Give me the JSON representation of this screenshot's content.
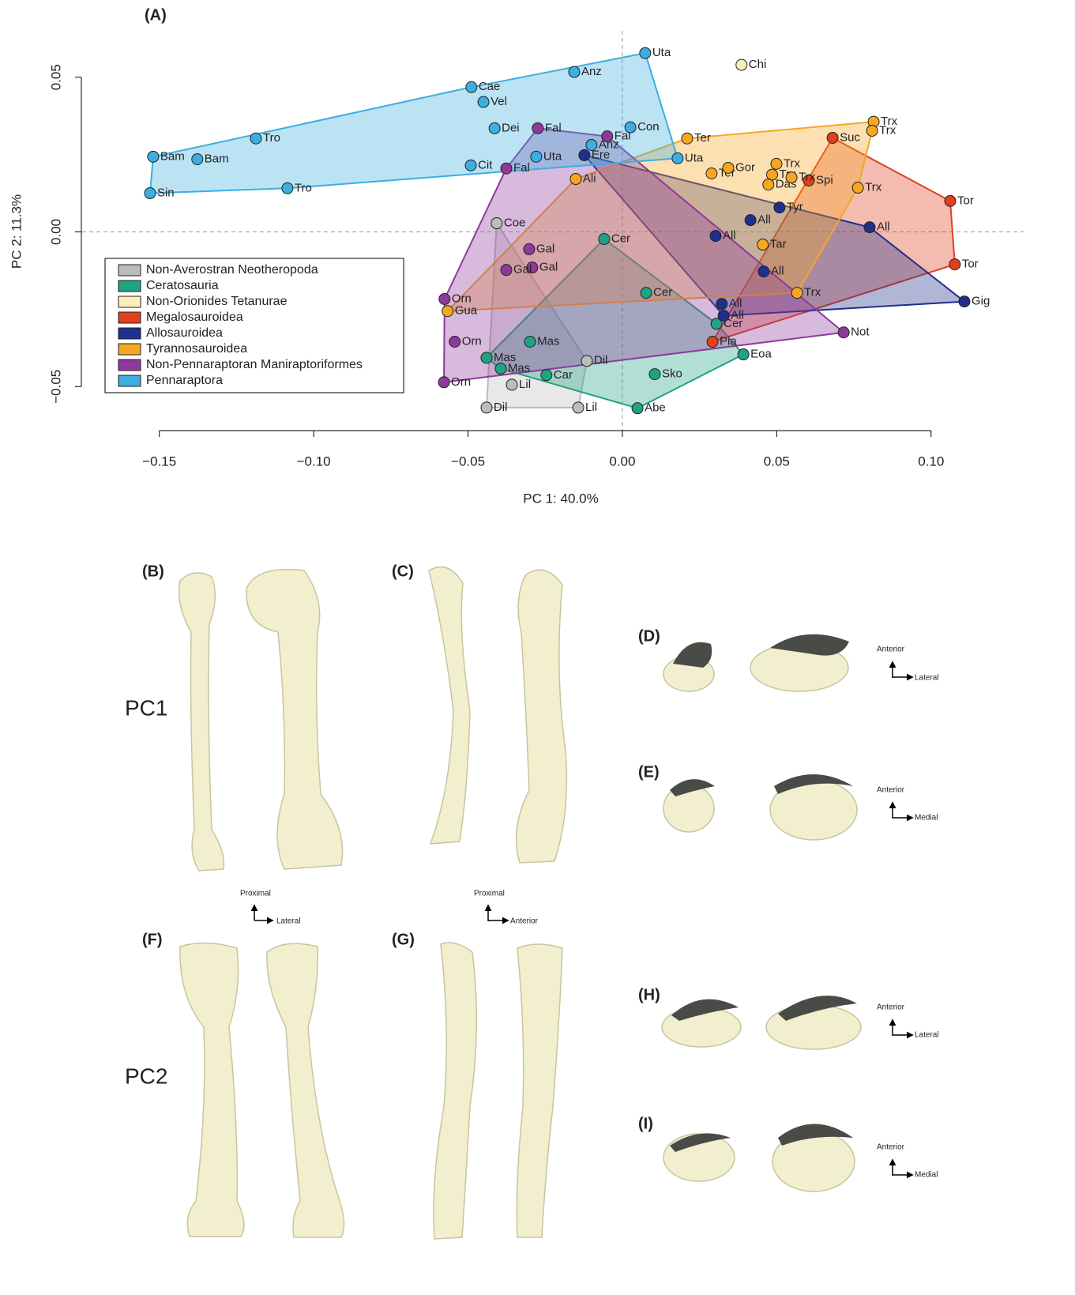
{
  "chart_data": {
    "type": "scatter",
    "title": "(A)",
    "x_label": "PC 1: 40.0%",
    "y_label": "PC 2: 11.3%",
    "xlim": [
      -0.175,
      0.13
    ],
    "ylim": [
      -0.065,
      0.065
    ],
    "xticks": [
      {
        "value": -0.15,
        "label": "−0.15"
      },
      {
        "value": -0.1,
        "label": "−0.10"
      },
      {
        "value": -0.05,
        "label": "−0.05"
      },
      {
        "value": 0,
        "label": "0.00"
      },
      0.05,
      {
        "value": 0.1,
        "label": "0.10"
      }
    ],
    "yticks": [
      {
        "value": -0.05,
        "label": "−0.05"
      },
      {
        "value": 0,
        "label": "0.00"
      },
      0.05
    ],
    "zero_lines": true,
    "hulls": true,
    "legend": "lower left",
    "series": [
      {
        "name": "Non-Averostran Neotheropoda",
        "color": "#bcbcbc",
        "labels": [
          "Coe",
          "Dil",
          "Lil",
          "Dil",
          "Lil"
        ],
        "x": [
          -0.0407,
          -0.0115,
          -0.0358,
          -0.044,
          -0.0143
        ],
        "y": [
          0.0028,
          -0.0417,
          -0.0494,
          -0.0568,
          -0.0568
        ]
      },
      {
        "name": "Ceratosauria",
        "color": "#1fa383",
        "labels": [
          "Cer",
          "Cer",
          "Mas",
          "Mas",
          "Mas",
          "Car",
          "Cer",
          "Eoa",
          "Sko",
          "Abe"
        ],
        "x": [
          -0.0059,
          0.0077,
          -0.0299,
          -0.044,
          -0.0394,
          -0.0246,
          0.0305,
          0.0392,
          0.0105,
          0.0049
        ],
        "y": [
          -0.0023,
          -0.0197,
          -0.0355,
          -0.0407,
          -0.0442,
          -0.0463,
          -0.0297,
          -0.0396,
          -0.046,
          -0.057
        ]
      },
      {
        "name": "Non-Orionides Tetanurae",
        "color": "#fbefb8",
        "labels": [
          "Chi"
        ],
        "x": [
          0.0386
        ],
        "y": [
          0.054
        ]
      },
      {
        "name": "Megalosauroidea",
        "color": "#e0401c",
        "labels": [
          "Suc",
          "Spi",
          "Tor",
          "Tor",
          "Pia"
        ],
        "x": [
          0.0681,
          0.0604,
          0.1062,
          0.1077,
          0.0292
        ],
        "y": [
          0.0304,
          0.0166,
          0.01,
          -0.0105,
          -0.0355
        ]
      },
      {
        "name": "Allosauroidea",
        "color": "#1f2f8c",
        "labels": [
          "Ere",
          "Tyr",
          "All",
          "All",
          "All",
          "All",
          "All",
          "All",
          "Gig"
        ],
        "x": [
          -0.0123,
          0.0509,
          0.0415,
          0.0302,
          0.0801,
          0.0458,
          0.0322,
          0.0328,
          0.1108
        ],
        "y": [
          0.0248,
          0.0079,
          0.0038,
          -0.0013,
          0.0015,
          -0.0128,
          -0.0233,
          -0.0271,
          -0.0225
        ]
      },
      {
        "name": "Tyrannosauroidea",
        "color": "#f5a623",
        "labels": [
          "Ali",
          "Ter",
          "Ter",
          "Gor",
          "Trx",
          "Trx",
          "Das",
          "Trx",
          "Trx",
          "Trx",
          "Trx",
          "Tar",
          "Trx",
          "Gua"
        ],
        "x": [
          -0.0151,
          0.021,
          0.0289,
          0.0343,
          0.0499,
          0.0485,
          0.0473,
          0.0548,
          0.0814,
          0.0809,
          0.0763,
          0.0455,
          0.0566,
          -0.0566
        ],
        "y": [
          0.0171,
          0.0302,
          0.0189,
          0.0207,
          0.022,
          0.0185,
          0.0153,
          0.0176,
          0.0356,
          0.0327,
          0.0143,
          -0.0041,
          -0.0197,
          -0.0256
        ]
      },
      {
        "name": "Non-Pennaraptoran Maniraptoriformes",
        "color": "#8e3a9c",
        "labels": [
          "Fal",
          "Fal",
          "Fal",
          "Gal",
          "Gal",
          "Gal",
          "Orn",
          "Orn",
          "Orn",
          "Not"
        ],
        "x": [
          -0.0274,
          -0.0049,
          -0.0376,
          -0.0302,
          -0.0292,
          -0.0376,
          -0.0576,
          -0.0543,
          -0.0578,
          0.0717
        ],
        "y": [
          0.0335,
          0.0309,
          0.0205,
          -0.0056,
          -0.0115,
          -0.0123,
          -0.0217,
          -0.0355,
          -0.0486,
          -0.0325
        ]
      },
      {
        "name": "Pennaraptora",
        "color": "#3daee0",
        "labels": [
          "Uta",
          "Anz",
          "Cae",
          "Vel",
          "Dei",
          "Con",
          "Tro",
          "Bam",
          "Bam",
          "Uta",
          "Cit",
          "Uta",
          "Tro",
          "Sin",
          "Anz"
        ],
        "x": [
          0.0074,
          -0.0156,
          -0.0489,
          -0.045,
          -0.0414,
          0.0026,
          -0.1187,
          -0.152,
          -0.1377,
          -0.0279,
          -0.0491,
          0.0179,
          -0.1085,
          -0.153,
          -0.01
        ],
        "y": [
          0.0578,
          0.0517,
          0.0468,
          0.042,
          0.0335,
          0.0338,
          0.0302,
          0.0243,
          0.0235,
          0.0243,
          0.0215,
          0.0238,
          0.0141,
          0.0125,
          0.0281
        ]
      }
    ]
  },
  "figure": {
    "panels": [
      "(B)",
      "(C)",
      "(D)",
      "(E)",
      "(F)",
      "(G)",
      "(H)",
      "(I)"
    ],
    "rows": [
      "PC1",
      "PC2"
    ],
    "orientations": [
      {
        "up": "Proximal",
        "right": "Lateral"
      },
      {
        "up": "Proximal",
        "right": "Anterior"
      },
      {
        "up": "Anterior",
        "right": "Lateral"
      },
      {
        "up": "Anterior",
        "right": "Medial"
      },
      {
        "up": "Anterior",
        "right": "Lateral"
      },
      {
        "up": "Anterior",
        "right": "Medial"
      }
    ]
  }
}
